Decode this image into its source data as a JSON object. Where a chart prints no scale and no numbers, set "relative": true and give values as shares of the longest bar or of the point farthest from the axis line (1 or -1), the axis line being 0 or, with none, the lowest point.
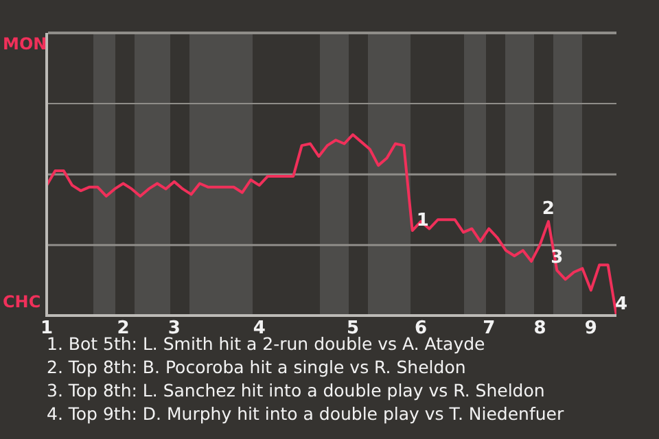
{
  "chart_data": {
    "type": "line",
    "relative": true,
    "categories": [
      "1",
      null,
      null,
      null,
      null,
      null,
      null,
      null,
      null,
      "2",
      null,
      null,
      null,
      null,
      null,
      "3",
      null,
      null,
      null,
      null,
      null,
      null,
      null,
      null,
      null,
      "4",
      null,
      null,
      null,
      null,
      null,
      null,
      null,
      null,
      null,
      null,
      "5",
      null,
      null,
      null,
      null,
      null,
      null,
      null,
      "6",
      null,
      null,
      null,
      null,
      null,
      null,
      null,
      "7",
      null,
      null,
      null,
      null,
      null,
      "8",
      null,
      null,
      null,
      null,
      null,
      "9",
      null,
      null,
      null
    ],
    "series": [
      {
        "color": "#f0305a",
        "values": [
          0.72,
          0.8,
          0.8,
          0.72,
          0.69,
          0.71,
          0.71,
          0.66,
          0.7,
          0.73,
          0.7,
          0.66,
          0.7,
          0.73,
          0.7,
          0.74,
          0.7,
          0.67,
          0.73,
          0.71,
          0.71,
          0.71,
          0.71,
          0.68,
          0.75,
          0.72,
          0.77,
          0.77,
          0.77,
          0.77,
          0.94,
          0.95,
          0.88,
          0.94,
          0.97,
          0.95,
          1,
          0.96,
          0.92,
          0.83,
          0.87,
          0.95,
          0.94,
          0.47,
          0.52,
          0.48,
          0.53,
          0.53,
          0.53,
          0.46,
          0.48,
          0.41,
          0.48,
          0.43,
          0.36,
          0.33,
          0.36,
          0.3,
          0.39,
          0.52,
          0.25,
          0.2,
          0.24,
          0.26,
          0.14,
          0.28,
          0.28,
          0
        ]
      }
    ],
    "ref_lines": [
      {
        "axis": "y",
        "value": 0.78,
        "color": "#8f8d89"
      },
      {
        "axis": "y",
        "value": 0.39,
        "color": "#8f8d89"
      }
    ],
    "marker": "none",
    "line_style": "solid",
    "annotations": [
      "MON",
      "CHC",
      {
        "text": "1",
        "y": 0.47
      },
      {
        "text": "2",
        "y": 0.52
      },
      {
        "text": "3",
        "y": 0.25
      },
      {
        "text": "4",
        "y": 0
      },
      "1. Bot 5th: L. Smith hit a 2-run double vs A. Atayde",
      "2. Top 8th: B. Pocoroba hit a single vs R. Sheldon",
      "3. Top 8th: L. Sanchez hit into a double play vs R. Sheldon",
      "4. Top 9th: D. Murphy hit into a double play vs T. Niedenfuer"
    ]
  }
}
